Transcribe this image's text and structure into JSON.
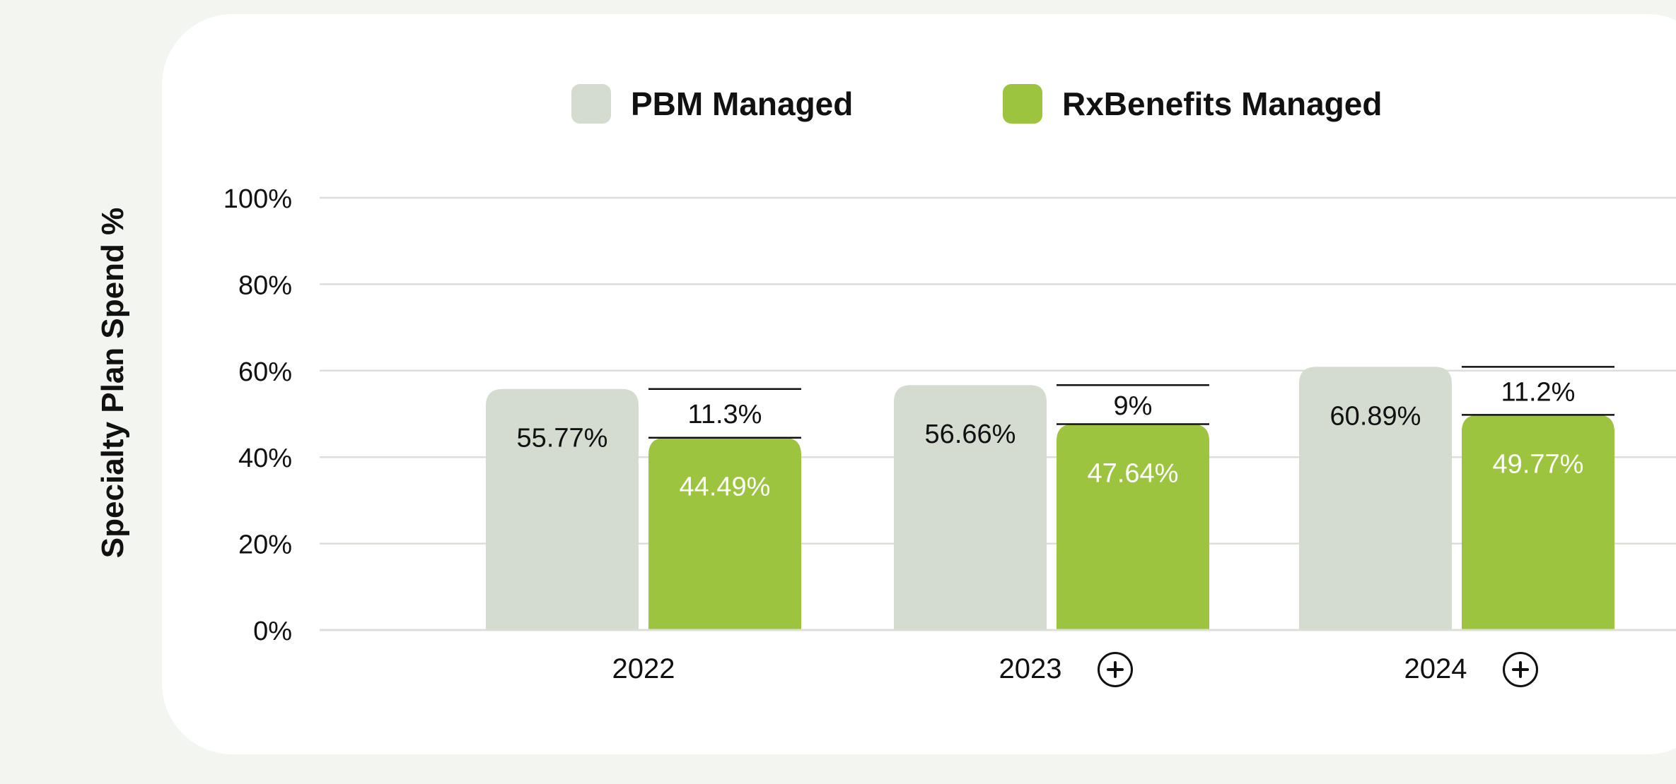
{
  "colors": {
    "page_bg": "#f3f5f0",
    "card_bg": "#ffffff",
    "pbm": "#d4dbcf",
    "rx": "#9cc43e",
    "grid": "#dcdfd8",
    "text": "#111111"
  },
  "legend": [
    {
      "label": "PBM Managed",
      "color": "#d4dbcf"
    },
    {
      "label": "RxBenefits Managed",
      "color": "#9cc43e"
    }
  ],
  "expand_icon": "plus-circle-icon",
  "chart_data": {
    "type": "bar",
    "ylabel": "Specialty Plan Spend %",
    "xlabel": "",
    "ylim": [
      0,
      100
    ],
    "yticks": [
      0,
      20,
      40,
      60,
      80,
      100
    ],
    "ytick_labels": [
      "0%",
      "20%",
      "40%",
      "60%",
      "80%",
      "100%"
    ],
    "categories": [
      "2022",
      "2023",
      "2024"
    ],
    "expandable": [
      false,
      true,
      true
    ],
    "series": [
      {
        "name": "PBM Managed",
        "values": [
          55.77,
          56.66,
          60.89
        ],
        "labels": [
          "55.77%",
          "56.66%",
          "60.89%"
        ]
      },
      {
        "name": "RxBenefits Managed",
        "values": [
          44.49,
          47.64,
          49.77
        ],
        "labels": [
          "44.49%",
          "47.64%",
          "49.77%"
        ]
      }
    ],
    "differences": [
      11.3,
      9,
      11.2
    ],
    "difference_labels": [
      "11.3%",
      "9%",
      "11.2%"
    ]
  }
}
